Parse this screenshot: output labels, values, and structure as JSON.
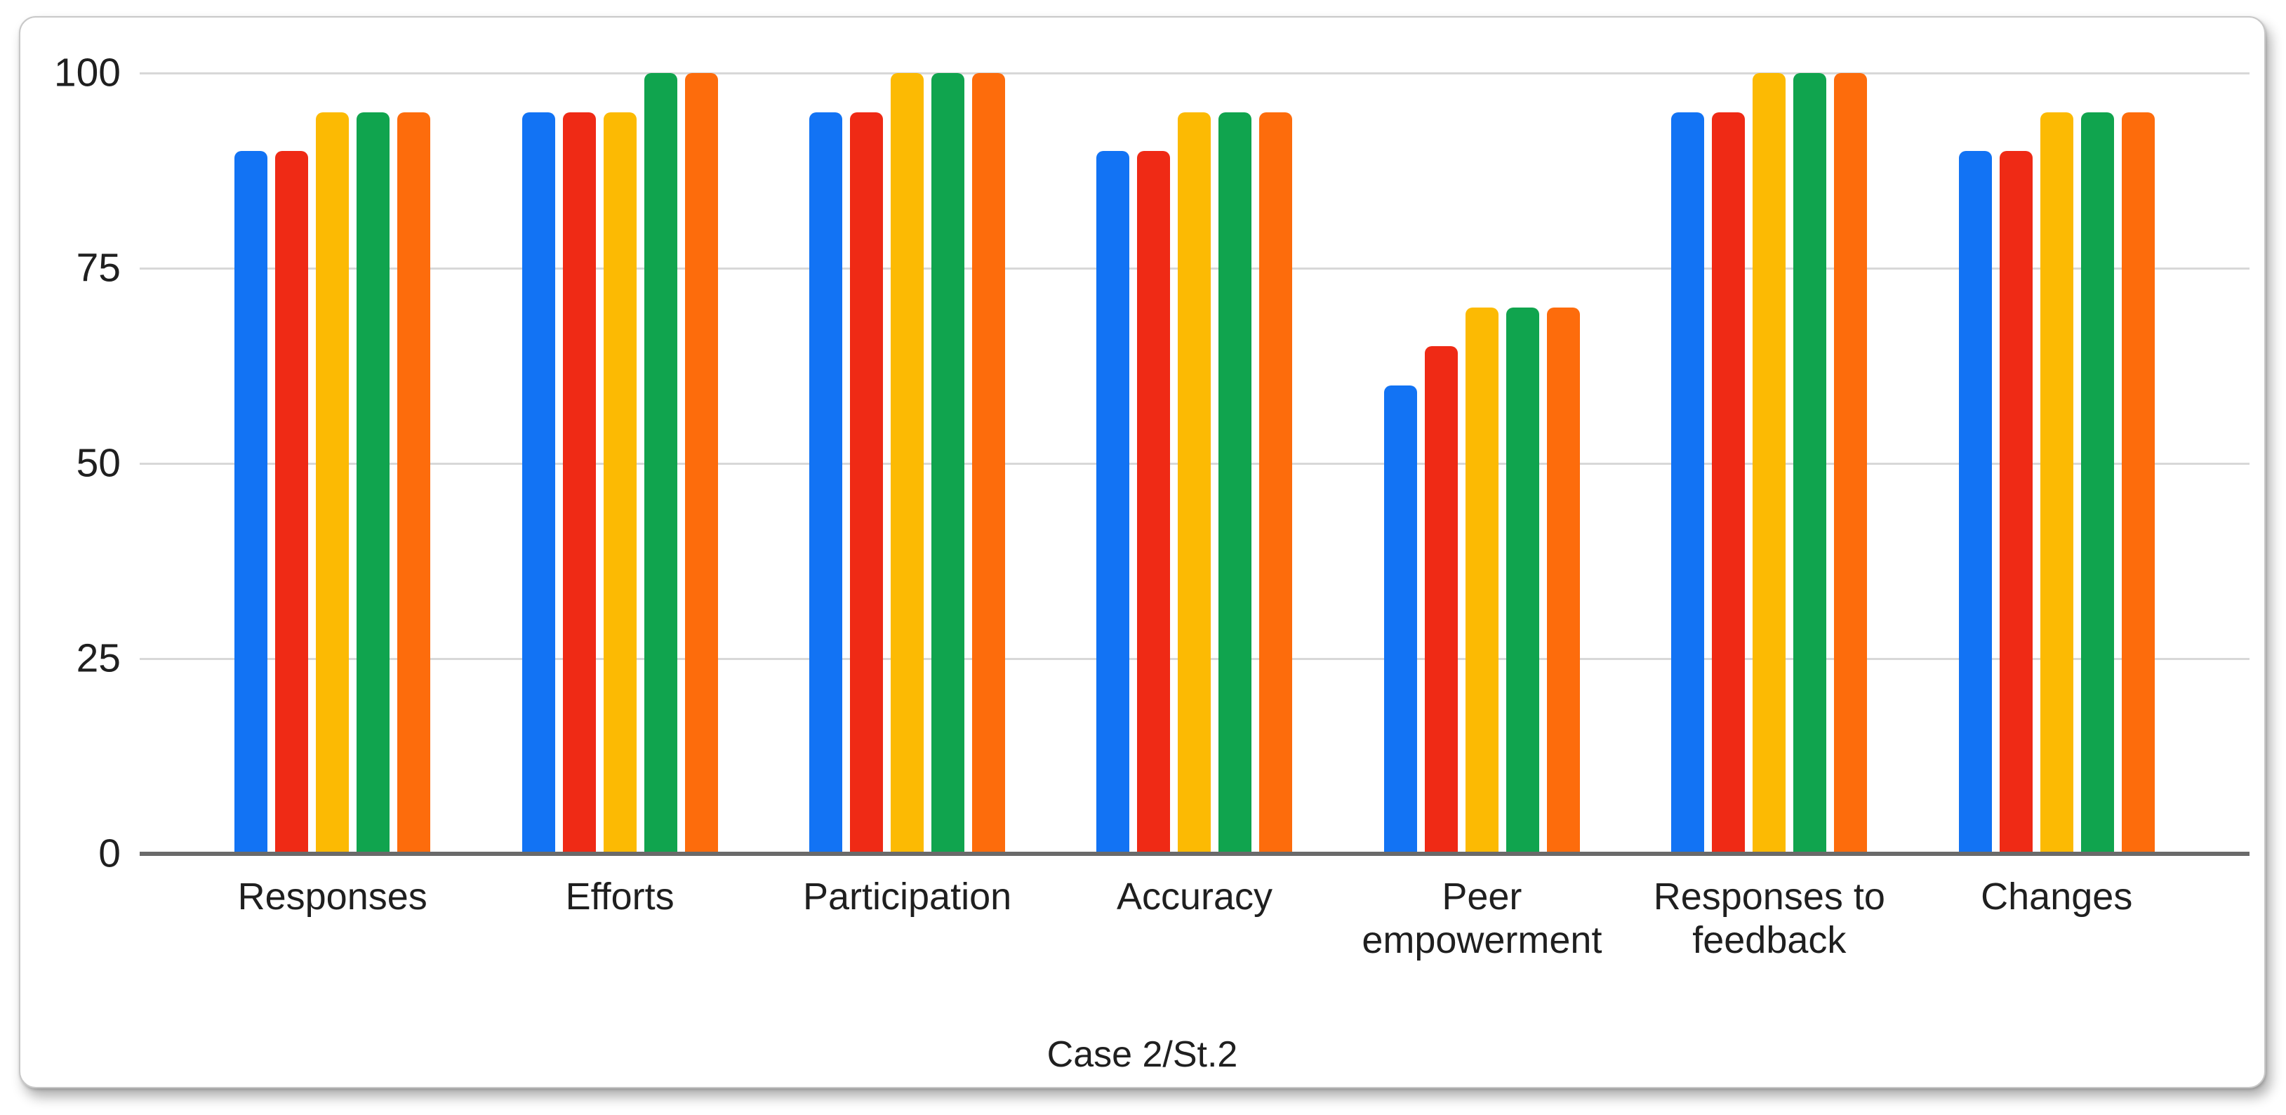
{
  "chart_data": {
    "type": "bar",
    "xlabel": "Case 2/St.2",
    "ylim": [
      0,
      100
    ],
    "yticks": [
      0,
      25,
      50,
      75,
      100
    ],
    "grid": true,
    "legend": "none",
    "categories": [
      "Responses",
      "Efforts",
      "Participation",
      "Accuracy",
      "Peer empowerment",
      "Responses to feedback",
      "Changes"
    ],
    "series": [
      {
        "color": "#1273f4",
        "values": [
          90,
          95,
          95,
          90,
          60,
          95,
          90
        ]
      },
      {
        "color": "#ef2a15",
        "values": [
          90,
          95,
          95,
          90,
          65,
          95,
          90
        ]
      },
      {
        "color": "#fcba03",
        "values": [
          95,
          95,
          100,
          95,
          70,
          100,
          95
        ]
      },
      {
        "color": "#10a44e",
        "values": [
          95,
          100,
          100,
          95,
          70,
          100,
          95
        ]
      },
      {
        "color": "#fd6c0c",
        "values": [
          95,
          100,
          100,
          95,
          70,
          100,
          95
        ]
      }
    ]
  },
  "theme": {
    "background": "#ffffff",
    "panel_border": "#c8c8c8",
    "grid_color": "#d8d8d8",
    "axis_color": "#6a6a6a",
    "text_color": "#1f1f1f"
  }
}
